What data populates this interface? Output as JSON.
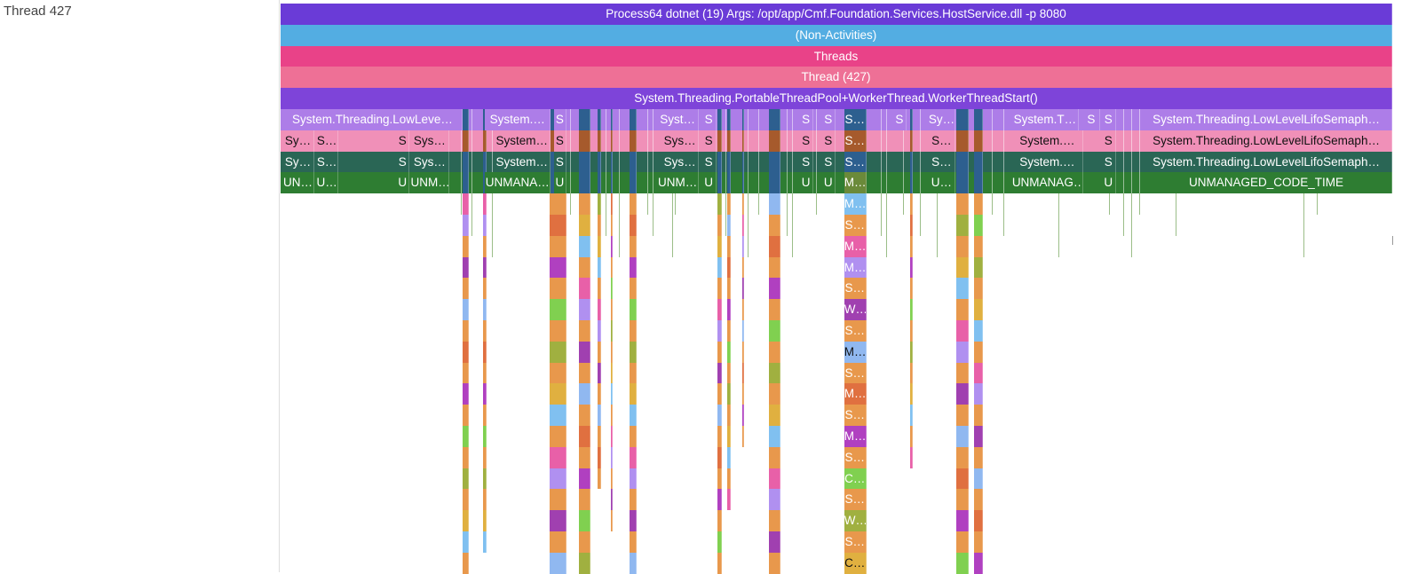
{
  "track": {
    "label": "Thread 427"
  },
  "chart_data": {
    "type": "flame",
    "time_range": [
      0,
      1000
    ],
    "rows": [
      {
        "label": "Process64 dotnet (19) Args: /opt/app/Cmf.Foundation.Services.HostService.dll -p 8080",
        "color": "#6a3bd7"
      },
      {
        "label": "(Non-Activities)",
        "color": "#53ade2"
      },
      {
        "label": "Threads",
        "color": "#e94288"
      },
      {
        "label": "Thread (427)",
        "color": "#ee7096"
      },
      {
        "label": "System.Threading.PortableThreadPool+WorkerThread.WorkerThreadStart()",
        "color": "#7e44d9"
      }
    ],
    "frame_rows": [
      {
        "color": "#ad7de8",
        "dark": false,
        "frames": [
          {
            "label": "System.Threading.LowLeve…",
            "t0": 2,
            "t1": 164
          },
          {
            "label": "System.…",
            "t0": 184,
            "t1": 243
          },
          {
            "label": "S",
            "t0": 246,
            "t1": 257,
            "color": "#ad7de8"
          },
          {
            "label": "Syst…",
            "t0": 339,
            "t1": 376
          },
          {
            "label": "S",
            "t0": 379,
            "t1": 392
          },
          {
            "label": "S",
            "t0": 467,
            "t1": 479
          },
          {
            "label": "S",
            "t0": 487,
            "t1": 499
          },
          {
            "label": "S…",
            "t0": 507,
            "t1": 527,
            "color": "#2d5f8f"
          },
          {
            "label": "S",
            "t0": 551,
            "t1": 563
          },
          {
            "label": "Sy…",
            "t0": 583,
            "t1": 607
          },
          {
            "label": "System.T…",
            "t0": 658,
            "t1": 718
          },
          {
            "label": "S",
            "t0": 722,
            "t1": 737
          },
          {
            "label": "S",
            "t0": 738,
            "t1": 752
          },
          {
            "label": "System.Threading.LowLevelLifoSemaph…",
            "t0": 774,
            "t1": 1000
          }
        ]
      },
      {
        "color": "#f090b8",
        "dark": true,
        "frames": [
          {
            "label": "Sy…",
            "t0": 2,
            "t1": 30
          },
          {
            "label": "S…",
            "t0": 32,
            "t1": 52
          },
          {
            "label": "S",
            "t0": 104,
            "t1": 116
          },
          {
            "label": "Sys…",
            "t0": 117,
            "t1": 152
          },
          {
            "label": "System…",
            "t0": 192,
            "t1": 243
          },
          {
            "label": "S",
            "t0": 246,
            "t1": 257
          },
          {
            "label": "Sys…",
            "t0": 343,
            "t1": 376
          },
          {
            "label": "S",
            "t0": 379,
            "t1": 392
          },
          {
            "label": "S",
            "t0": 467,
            "t1": 479
          },
          {
            "label": "S",
            "t0": 487,
            "t1": 499
          },
          {
            "label": "S…",
            "t0": 507,
            "t1": 527,
            "color": "#a65a2c"
          },
          {
            "label": "S…",
            "t0": 583,
            "t1": 607
          },
          {
            "label": "System.…",
            "t0": 658,
            "t1": 722
          },
          {
            "label": "S",
            "t0": 738,
            "t1": 752
          },
          {
            "label": "System.Threading.LowLevelLifoSemaph…",
            "t0": 774,
            "t1": 1000
          }
        ]
      },
      {
        "color": "#2a6655",
        "dark": false,
        "frames": [
          {
            "label": "Sy…",
            "t0": 2,
            "t1": 30
          },
          {
            "label": "S…",
            "t0": 32,
            "t1": 52
          },
          {
            "label": "S",
            "t0": 104,
            "t1": 116
          },
          {
            "label": "Sys…",
            "t0": 117,
            "t1": 152
          },
          {
            "label": "System…",
            "t0": 192,
            "t1": 243
          },
          {
            "label": "S",
            "t0": 246,
            "t1": 257
          },
          {
            "label": "Sys…",
            "t0": 343,
            "t1": 376
          },
          {
            "label": "S",
            "t0": 379,
            "t1": 392
          },
          {
            "label": "S",
            "t0": 467,
            "t1": 479
          },
          {
            "label": "S",
            "t0": 487,
            "t1": 499
          },
          {
            "label": "S…",
            "t0": 507,
            "t1": 527,
            "color": "#2d5f8f"
          },
          {
            "label": "S…",
            "t0": 583,
            "t1": 607
          },
          {
            "label": "System.…",
            "t0": 658,
            "t1": 722
          },
          {
            "label": "S",
            "t0": 738,
            "t1": 752
          },
          {
            "label": "System.Threading.LowLevelLifoSemaph…",
            "t0": 774,
            "t1": 1000
          }
        ]
      },
      {
        "color": "#2e7d32",
        "dark": false,
        "frames": [
          {
            "label": "UN…",
            "t0": 2,
            "t1": 30
          },
          {
            "label": "U…",
            "t0": 32,
            "t1": 52
          },
          {
            "label": "U",
            "t0": 104,
            "t1": 116
          },
          {
            "label": "UNM…",
            "t0": 117,
            "t1": 152
          },
          {
            "label": "UNMANA…",
            "t0": 184,
            "t1": 243
          },
          {
            "label": "U",
            "t0": 246,
            "t1": 257
          },
          {
            "label": "UNM…",
            "t0": 339,
            "t1": 376
          },
          {
            "label": "U",
            "t0": 379,
            "t1": 392
          },
          {
            "label": "U",
            "t0": 467,
            "t1": 479
          },
          {
            "label": "U",
            "t0": 487,
            "t1": 499
          },
          {
            "label": "M…",
            "t0": 507,
            "t1": 527,
            "color": "#6b8a3a"
          },
          {
            "label": "U…",
            "t0": 583,
            "t1": 607
          },
          {
            "label": "UNMANAG…",
            "t0": 658,
            "t1": 722
          },
          {
            "label": "U",
            "t0": 738,
            "t1": 752
          },
          {
            "label": "UNMANAGED_CODE_TIME",
            "t0": 774,
            "t1": 1000
          }
        ]
      }
    ],
    "stack_column": {
      "t0": 507,
      "t1": 527,
      "frames": [
        {
          "label": "M…",
          "color": "#80c0f0"
        },
        {
          "label": "S…",
          "color": "#e8984c"
        },
        {
          "label": "M…",
          "color": "#e860a8"
        },
        {
          "label": "M…",
          "color": "#b090f0"
        },
        {
          "label": "S…",
          "color": "#e8984c"
        },
        {
          "label": "W…",
          "color": "#a040b0"
        },
        {
          "label": "S…",
          "color": "#e8984c"
        },
        {
          "label": "M…",
          "color": "#90b8f0",
          "dark": true
        },
        {
          "label": "S…",
          "color": "#e8984c"
        },
        {
          "label": "M…",
          "color": "#e07040"
        },
        {
          "label": "S…",
          "color": "#e8984c"
        },
        {
          "label": "M…",
          "color": "#b040c0"
        },
        {
          "label": "S…",
          "color": "#e8984c"
        },
        {
          "label": "C…",
          "color": "#80d050"
        },
        {
          "label": "S…",
          "color": "#e8984c"
        },
        {
          "label": "W…",
          "color": "#a0b040"
        },
        {
          "label": "S…",
          "color": "#e8984c"
        },
        {
          "label": "C…",
          "color": "#e0b040",
          "dark": true
        }
      ]
    },
    "columns": [
      {
        "t0": 164,
        "t1": 169,
        "depth": 18
      },
      {
        "t0": 182,
        "t1": 185,
        "depth": 17
      },
      {
        "t0": 242,
        "t1": 257,
        "depth": 18
      },
      {
        "t0": 268,
        "t1": 279,
        "depth": 18
      },
      {
        "t0": 285,
        "t1": 288,
        "depth": 14
      },
      {
        "t0": 297,
        "t1": 299,
        "depth": 16
      },
      {
        "t0": 314,
        "t1": 320,
        "depth": 18
      },
      {
        "t0": 393,
        "t1": 397,
        "depth": 18
      },
      {
        "t0": 402,
        "t1": 405,
        "depth": 15
      },
      {
        "t0": 415,
        "t1": 417,
        "depth": 12
      },
      {
        "t0": 439,
        "t1": 450,
        "depth": 18
      },
      {
        "t0": 566,
        "t1": 569,
        "depth": 13
      },
      {
        "t0": 608,
        "t1": 619,
        "depth": 18
      },
      {
        "t0": 624,
        "t1": 632,
        "depth": 18
      }
    ],
    "slivers": [
      162,
      172,
      190,
      260,
      292,
      304,
      330,
      335,
      352,
      355,
      400,
      420,
      430,
      455,
      460,
      482,
      540,
      545,
      560,
      575,
      590,
      640,
      650,
      700,
      745,
      758,
      765,
      772,
      805,
      920,
      932
    ]
  }
}
